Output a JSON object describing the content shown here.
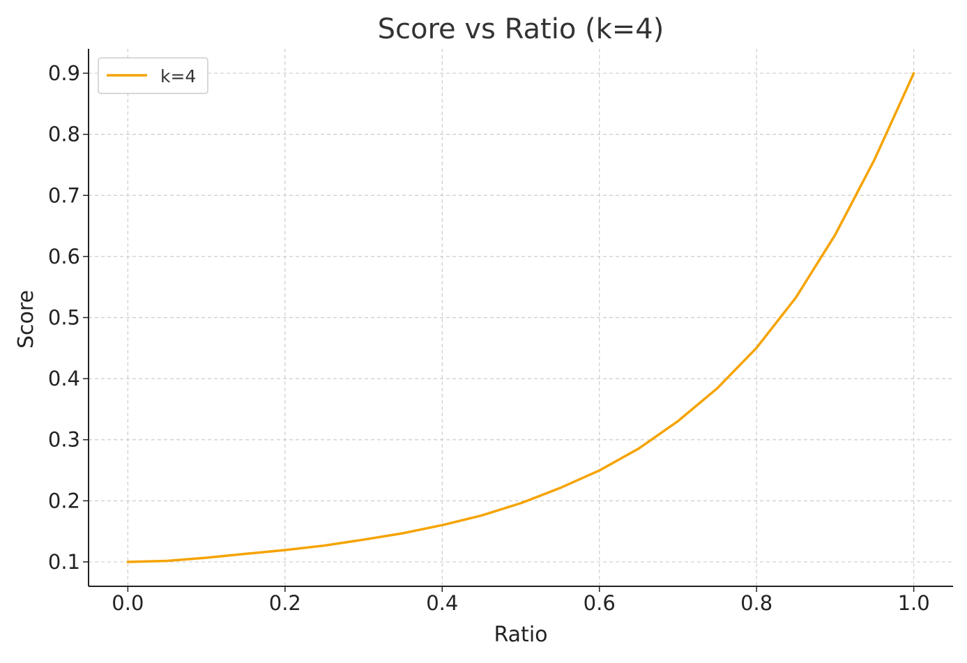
{
  "chart_data": {
    "type": "line",
    "title": "Score vs Ratio (k=4)",
    "xlabel": "Ratio",
    "ylabel": "Score",
    "xlim": [
      -0.05,
      1.05
    ],
    "ylim": [
      0.06,
      0.94
    ],
    "xticks": [
      0.0,
      0.2,
      0.4,
      0.6,
      0.8,
      1.0
    ],
    "xtick_labels": [
      "0.0",
      "0.2",
      "0.4",
      "0.6",
      "0.8",
      "1.0"
    ],
    "yticks": [
      0.1,
      0.2,
      0.3,
      0.4,
      0.5,
      0.6,
      0.7,
      0.8,
      0.9
    ],
    "ytick_labels": [
      "0.1",
      "0.2",
      "0.3",
      "0.4",
      "0.5",
      "0.6",
      "0.7",
      "0.8",
      "0.9"
    ],
    "grid": true,
    "legend_position": "top-left",
    "series": [
      {
        "name": "k=4",
        "color": "#f5a300",
        "x": [
          0.0,
          0.05,
          0.1,
          0.15,
          0.2,
          0.25,
          0.3,
          0.35,
          0.4,
          0.45,
          0.5,
          0.55,
          0.6,
          0.65,
          0.7,
          0.75,
          0.8,
          0.85,
          0.9,
          0.95,
          1.0
        ],
        "y": [
          0.1,
          0.1017,
          0.1068,
          0.1132,
          0.1193,
          0.1267,
          0.1364,
          0.1469,
          0.1602,
          0.1759,
          0.1961,
          0.221,
          0.2497,
          0.2855,
          0.3305,
          0.3842,
          0.4504,
          0.5327,
          0.6355,
          0.7585,
          0.9
        ]
      }
    ]
  }
}
